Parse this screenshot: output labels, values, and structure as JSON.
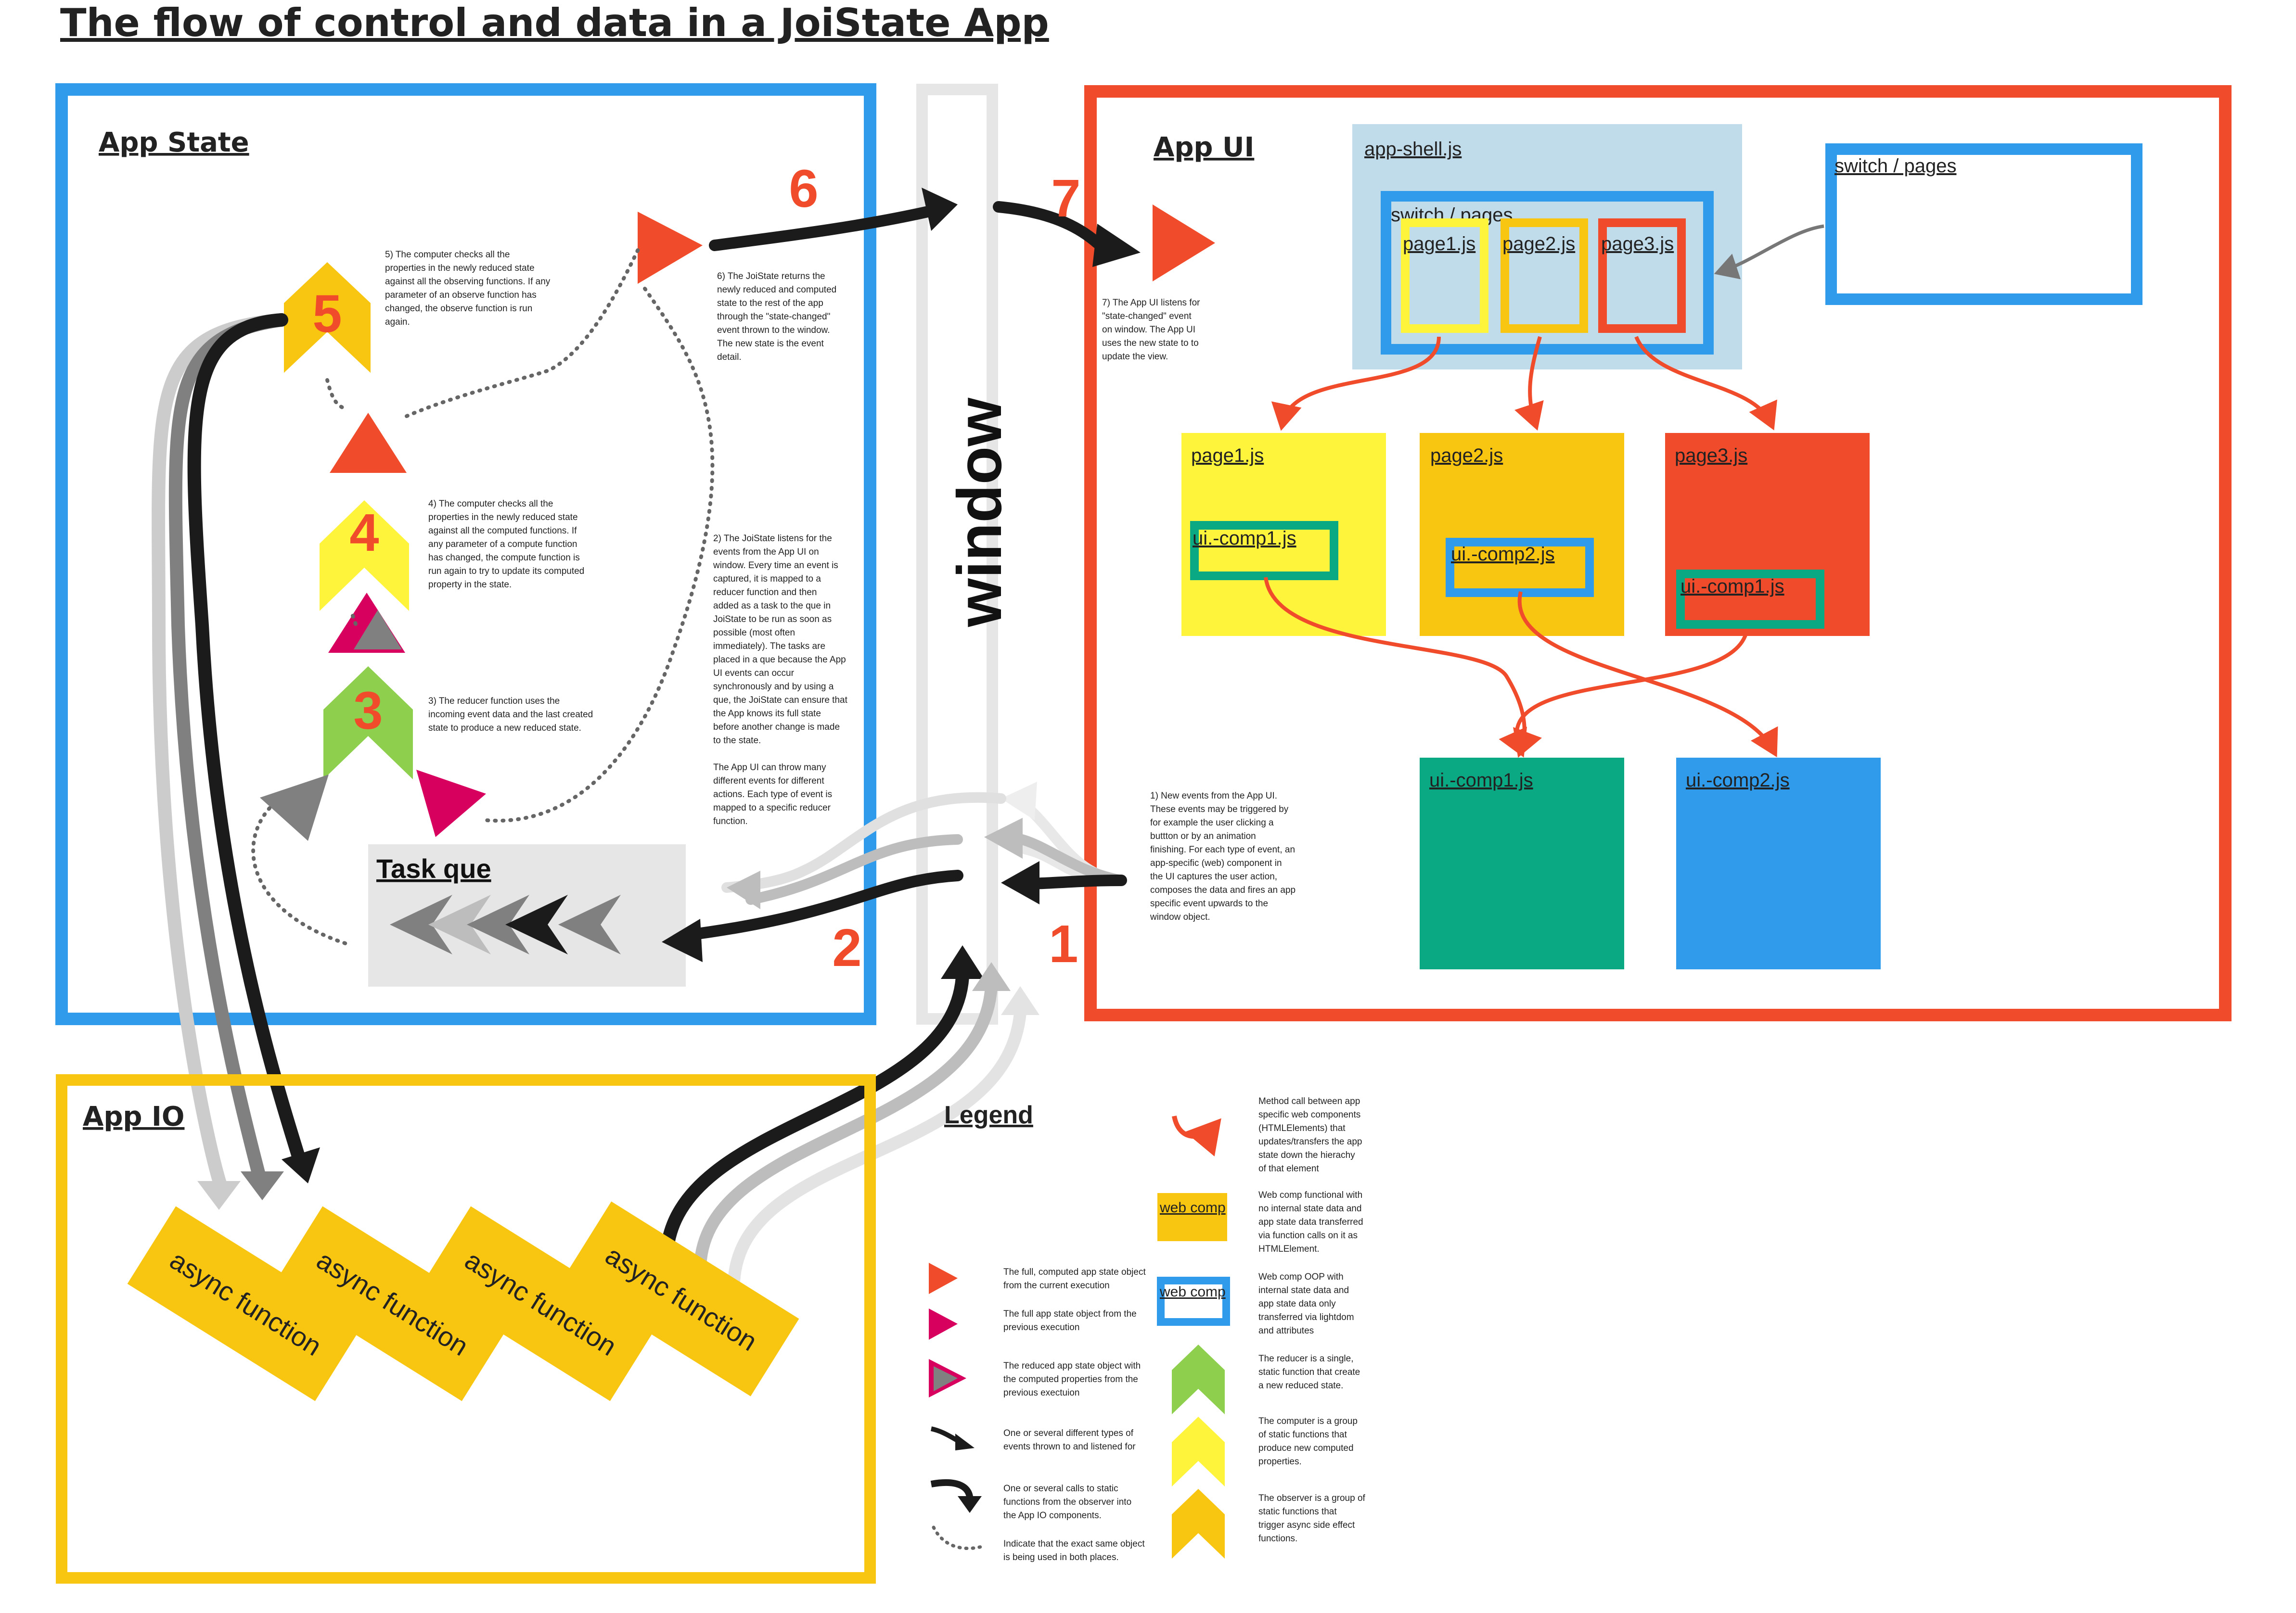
{
  "title": "The flow of control and data in a JoiState App",
  "window_label": "window",
  "app_state": {
    "title": "App State",
    "task_que_label": "Task que",
    "num_3": "3",
    "num_4": "4",
    "num_5": "5",
    "note_3": [
      "3) The reducer function uses the",
      "incoming event data and the last created",
      "state to produce a new reduced state."
    ],
    "note_4": [
      "4) The computer checks all the",
      "properties in the newly reduced state",
      "against all the computed functions. If",
      "any parameter of a compute function",
      "has changed, the compute function is",
      "run again to try to update its computed",
      "property in the state."
    ],
    "note_5": [
      "5) The computer checks all the",
      "properties in the newly reduced state",
      "against all the observing functions. If any",
      "parameter of an observe function has",
      "changed, the observe function is run",
      "again."
    ],
    "note_2": [
      "2) The JoiState listens for the",
      "events from the App UI on",
      "window. Every time an event is",
      "captured, it is mapped to a",
      "reducer function and then",
      "added as a task to the que in",
      "JoiState to be run as soon as",
      "possible (most often",
      "immediately). The tasks are",
      "placed in a que because the App",
      "UI events can occur",
      "synchronously and by using a",
      "que, the JoiState can ensure that",
      "the App knows its full state",
      "before another change is made",
      "to the state.",
      "",
      "The App UI can throw many",
      "different events for different",
      "actions. Each type of event is",
      "mapped to a specific reducer",
      "function."
    ],
    "note_6": [
      "6) The JoiState returns the",
      "newly reduced and computed",
      "state to the rest of the app",
      "through the \"state-changed\"",
      "event thrown to the window.",
      "The new state is the event",
      "detail."
    ]
  },
  "steps": {
    "s1": "1",
    "s2": "2",
    "s6": "6",
    "s7": "7"
  },
  "app_ui": {
    "title": "App UI",
    "shell_label": "app-shell.js",
    "switch_inner_label": "switch / pages",
    "switch_outer_label": "switch / pages",
    "pages_small": [
      "page1.js",
      "page2.js",
      "page3.js"
    ],
    "pages": [
      "page1.js",
      "page2.js",
      "page3.js"
    ],
    "comps_in_pages": [
      "ui.-comp1.js",
      "ui.-comp2.js",
      "ui.-comp1.js"
    ],
    "comps": [
      "ui.-comp1.js",
      "ui.-comp2.js"
    ],
    "note_7": [
      "7) The App UI listens for",
      "\"state-changed\" event",
      "on window. The App UI",
      "uses the new state to to",
      "update the view."
    ],
    "note_1": [
      "1) New events from the App UI.",
      "These events may be triggered by",
      "for example the user clicking a",
      "buttton or by an animation",
      "finishing. For each type of event, an",
      "app-specific (web) component in",
      "the UI captures the user action,",
      "composes the data and fires an app",
      "specific event upwards to the",
      "window object."
    ]
  },
  "app_io": {
    "title": "App IO",
    "async_functions": [
      "async function",
      "async function",
      "async function",
      "async function"
    ]
  },
  "legend": {
    "title": "Legend",
    "left": [
      [
        "The full, computed app state object",
        "from the current execution"
      ],
      [
        "The full app state object from the",
        "previous execution"
      ],
      [
        "The reduced app state object with",
        "the computed properties from the",
        "previous exectuion"
      ],
      [
        "One or several different types of",
        "events thrown to and listened for"
      ],
      [
        "One or several calls to static",
        "functions from the observer into",
        "the App IO components."
      ],
      [
        "Indicate that the exact same object",
        "is being used in both places."
      ]
    ],
    "right": [
      [
        "Method call between app",
        "specific web components",
        "(HTMLElements) that",
        "updates/transfers the app",
        "state down the hierachy",
        "of that element"
      ],
      [
        "Web comp functional with",
        "no internal state data and",
        "app state data transferred",
        "via function calls on it as",
        "HTMLElement."
      ],
      [
        "Web comp OOP with",
        "internal state data and",
        "app state data only",
        "transferred via lightdom",
        "and attributes"
      ],
      [
        "The reducer is a single,",
        "static function that create",
        "a new reduced state."
      ],
      [
        "The computer is a group",
        "of static functions that",
        "produce new computed",
        "properties."
      ],
      [
        "The observer is a group of",
        "static functions that",
        "trigger async side effect",
        "functions."
      ]
    ],
    "webcomp_func_label": "web comp",
    "webcomp_oop_label": "web comp"
  },
  "colors": {
    "blue": "#2f9bea",
    "red": "#f04b2a",
    "yellow": "#f8c511",
    "light_yellow": "#fff43c",
    "green": "#8ecf4d",
    "teal": "#0ba884",
    "magenta": "#d8005f",
    "light_blue": "#c0dbea",
    "grey": "#e6e6e6"
  }
}
